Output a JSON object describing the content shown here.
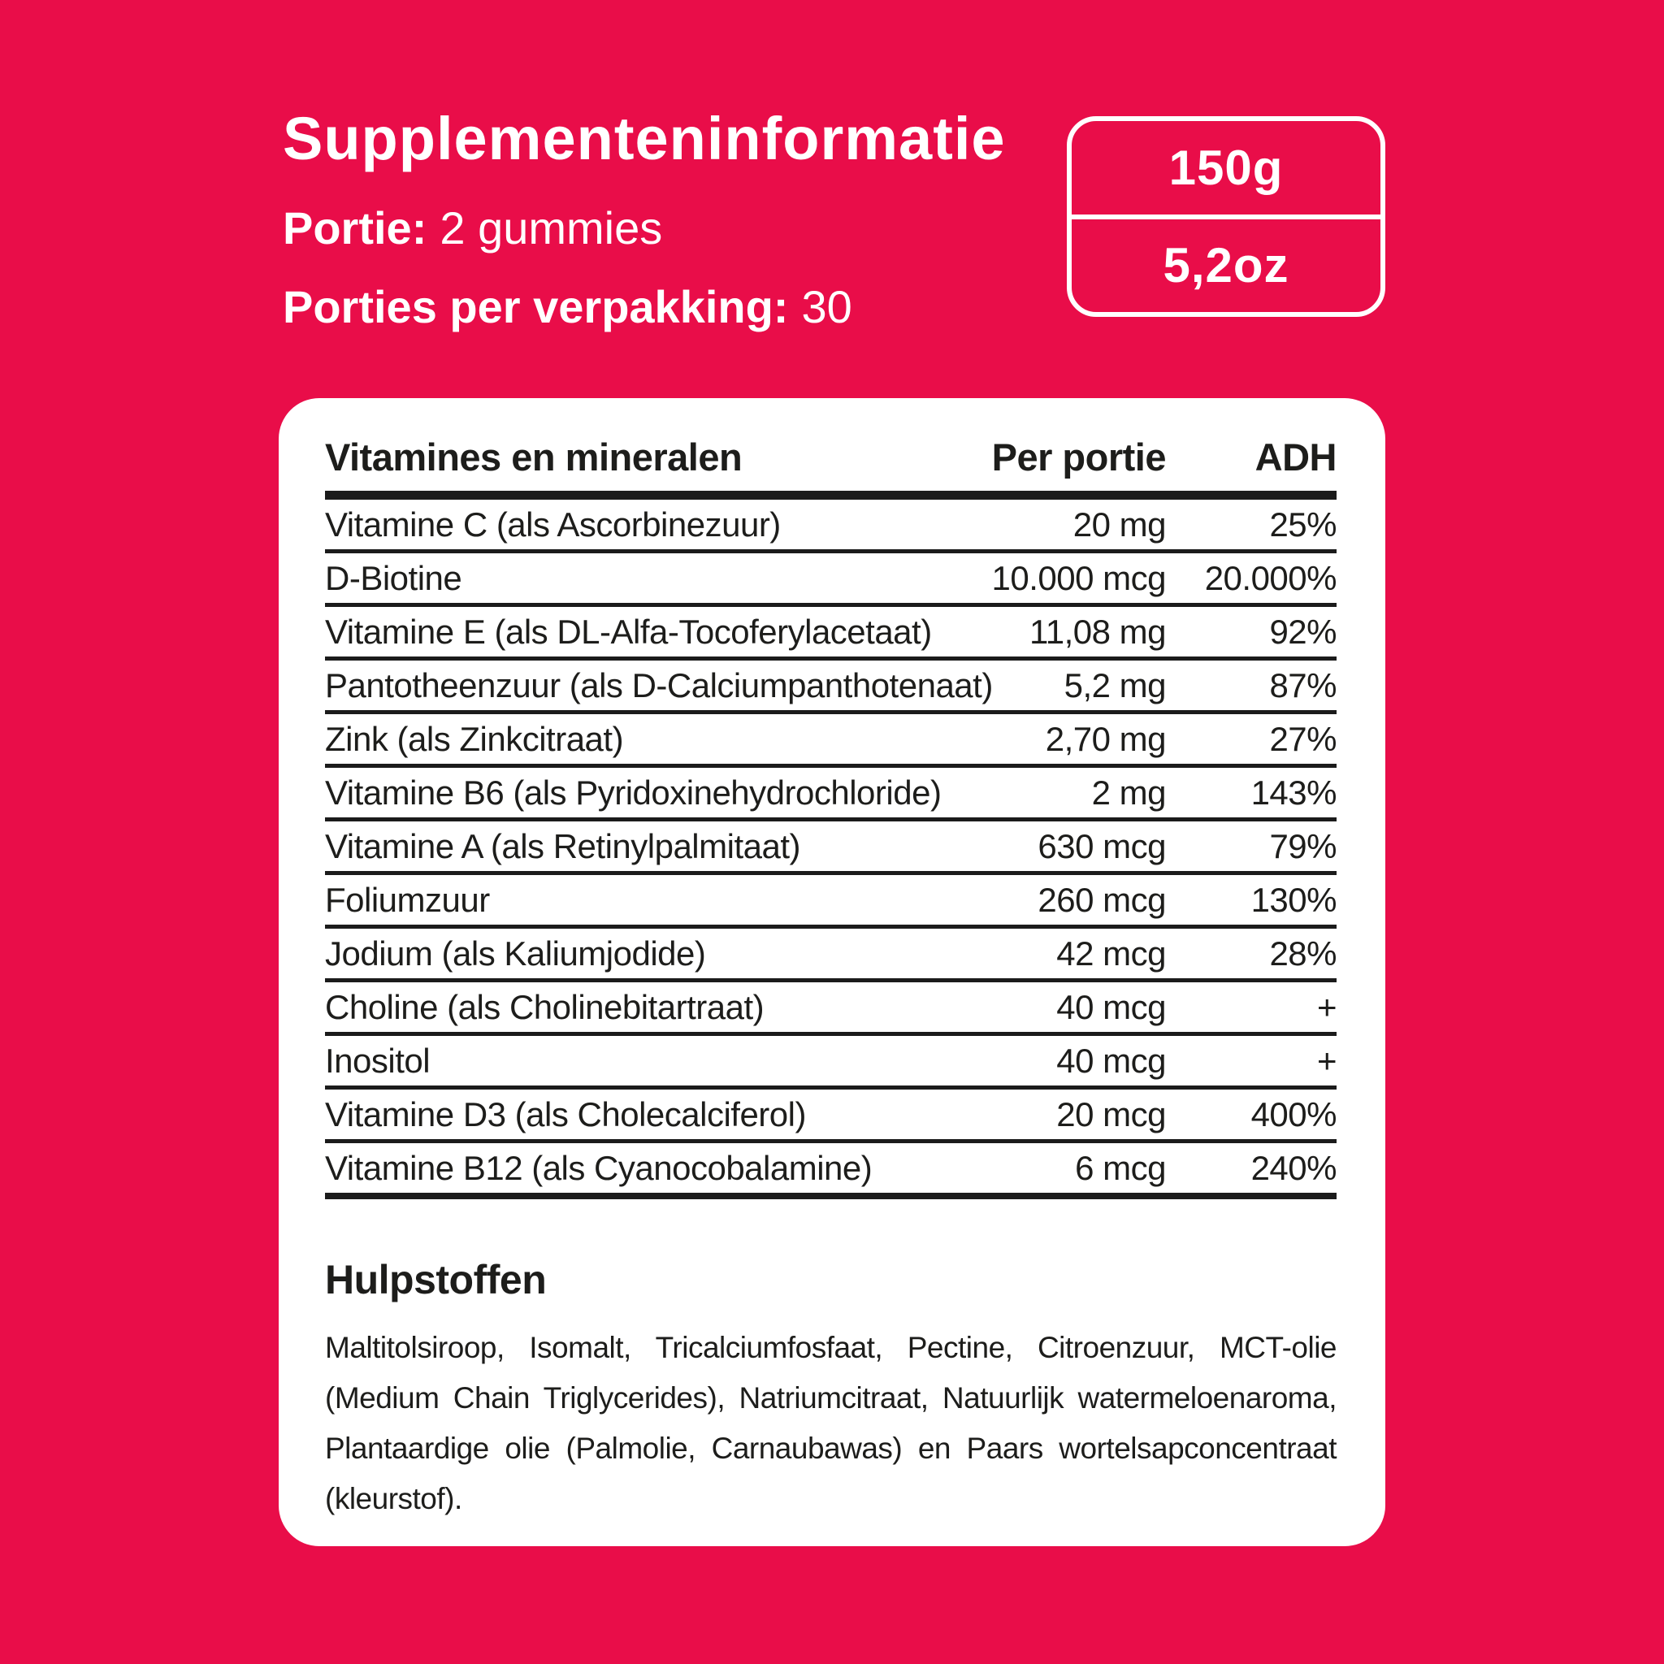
{
  "header": {
    "title": "Supplementeninformatie",
    "serving_label": "Portie:",
    "serving_value": "2 gummies",
    "servings_label": "Porties per verpakking:",
    "servings_value": "30"
  },
  "badge": {
    "grams": "150g",
    "ounces": "5,2oz"
  },
  "table": {
    "columns": [
      "Vitamines en mineralen",
      "Per portie",
      "ADH"
    ],
    "rows": [
      {
        "name": "Vitamine C (als Ascorbinezuur)",
        "amount": "20 mg",
        "adh": "25%"
      },
      {
        "name": "D-Biotine",
        "amount": "10.000 mcg",
        "adh": "20.000%"
      },
      {
        "name": "Vitamine E (als DL-Alfa-Tocoferylacetaat)",
        "amount": "11,08 mg",
        "adh": "92%"
      },
      {
        "name": "Pantotheenzuur (als D-Calciumpanthotenaat)",
        "amount": "5,2 mg",
        "adh": "87%"
      },
      {
        "name": "Zink (als Zinkcitraat)",
        "amount": "2,70 mg",
        "adh": "27%"
      },
      {
        "name": "Vitamine B6 (als Pyridoxinehydrochloride)",
        "amount": "2 mg",
        "adh": "143%"
      },
      {
        "name": "Vitamine A (als Retinylpalmitaat)",
        "amount": "630 mcg",
        "adh": "79%"
      },
      {
        "name": "Foliumzuur",
        "amount": "260 mcg",
        "adh": "130%"
      },
      {
        "name": "Jodium (als Kaliumjodide)",
        "amount": "42 mcg",
        "adh": "28%"
      },
      {
        "name": "Choline (als Cholinebitartraat)",
        "amount": "40 mcg",
        "adh": "+"
      },
      {
        "name": "Inositol",
        "amount": "40 mcg",
        "adh": "+"
      },
      {
        "name": "Vitamine D3 (als Cholecalciferol)",
        "amount": "20 mcg",
        "adh": "400%"
      },
      {
        "name": "Vitamine B12 (als Cyanocobalamine)",
        "amount": "6 mcg",
        "adh": "240%"
      }
    ]
  },
  "excipients": {
    "heading": "Hulpstoffen",
    "lines": [
      "Maltitolsiroop, Isomalt, Tricalciumfosfaat, Pectine, Citroenzuur, MCT-olie",
      "(Medium Chain Triglycerides), Natriumcitraat, Natuurlijk watermeloenaroma,",
      "Plantaardige olie (Palmolie, Carnaubawas) en Paars wortelsapconcentraat",
      "(kleurstof)."
    ]
  },
  "colors": {
    "background": "#E90D49",
    "card": "#FFFFFF",
    "text_dark": "#1D1D1B",
    "text_light": "#FFFFFF",
    "rule": "#1B1B1B"
  }
}
